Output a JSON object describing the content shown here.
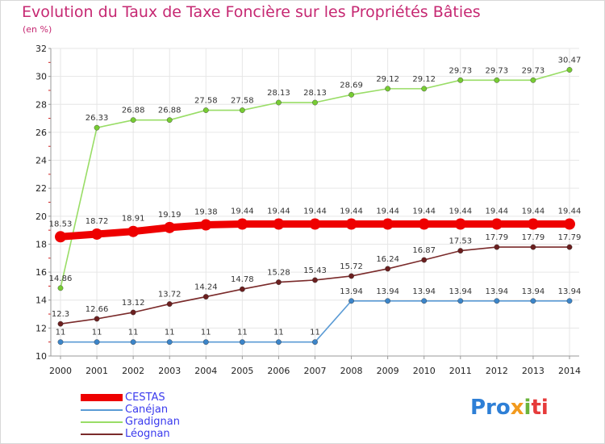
{
  "title": "Evolution du Taux de Taxe Foncière sur les Propriétés Bâties",
  "unit": "(en %)",
  "logo": {
    "p1": "Pro",
    "p2": "x",
    "p3": "i",
    "p4": "ti"
  },
  "colors": {
    "axis": "#999999",
    "grid": "#e6e6e6",
    "minor_tick": "#d02020",
    "title": "#c62872"
  },
  "chart_data": {
    "type": "line",
    "title": "Evolution du Taux de Taxe Foncière sur les Propriétés Bâties",
    "ylabel": "(en %)",
    "xlabel": "",
    "ylim": [
      10,
      32
    ],
    "yticks": [
      "10",
      "12",
      "14",
      "16",
      "18",
      "20",
      "22",
      "24",
      "26",
      "28",
      "30",
      "32"
    ],
    "categories": [
      "2000",
      "2001",
      "2002",
      "2003",
      "2004",
      "2005",
      "2006",
      "2007",
      "2008",
      "2009",
      "2010",
      "2011",
      "2012",
      "2013",
      "2014"
    ],
    "series": [
      {
        "name": "Gradignan",
        "color": "#99dd66",
        "marker": "#77cc33",
        "thick": false,
        "values": [
          14.86,
          26.33,
          26.88,
          26.88,
          27.58,
          27.58,
          28.13,
          28.13,
          28.69,
          29.12,
          29.12,
          29.73,
          29.73,
          29.73,
          30.47
        ],
        "labels": [
          "14.86",
          "26.33",
          "26.88",
          "26.88",
          "27.58",
          "27.58",
          "28.13",
          "28.13",
          "28.69",
          "29.12",
          "29.12",
          "29.73",
          "29.73",
          "29.73",
          "30.47"
        ]
      },
      {
        "name": "Léognan",
        "color": "#7a2a2a",
        "marker": "#6b1f1f",
        "thick": false,
        "values": [
          12.3,
          12.66,
          13.12,
          13.72,
          14.24,
          14.78,
          15.28,
          15.43,
          15.72,
          16.24,
          16.87,
          17.53,
          17.79,
          17.79,
          17.79
        ],
        "labels": [
          "12.3",
          "12.66",
          "13.12",
          "13.72",
          "14.24",
          "14.78",
          "15.28",
          "15.43",
          "15.72",
          "16.24",
          "16.87",
          "17.53",
          "17.79",
          "17.79",
          "17.79"
        ]
      },
      {
        "name": "Canéjan",
        "color": "#5b9bd5",
        "marker": "#3c85c9",
        "thick": false,
        "values": [
          11,
          11,
          11,
          11,
          11,
          11,
          11,
          11,
          13.94,
          13.94,
          13.94,
          13.94,
          13.94,
          13.94,
          13.94
        ],
        "labels": [
          "11",
          "11",
          "11",
          "11",
          "11",
          "11",
          "11",
          "11",
          "13.94",
          "13.94",
          "13.94",
          "13.94",
          "13.94",
          "13.94",
          "13.94"
        ]
      },
      {
        "name": "CESTAS",
        "color": "#ee0000",
        "marker": "#ee0000",
        "thick": true,
        "values": [
          18.53,
          18.72,
          18.91,
          19.19,
          19.38,
          19.44,
          19.44,
          19.44,
          19.44,
          19.44,
          19.44,
          19.44,
          19.44,
          19.44,
          19.44
        ],
        "labels": [
          "18.53",
          "18.72",
          "18.91",
          "19.19",
          "19.38",
          "19.44",
          "19.44",
          "19.44",
          "19.44",
          "19.44",
          "19.44",
          "19.44",
          "19.44",
          "19.44",
          "19.44"
        ]
      }
    ],
    "legend": [
      {
        "name": "CESTAS",
        "color": "#ee0000",
        "text_color": "#3a3aee",
        "thick": true
      },
      {
        "name": "Canéjan",
        "color": "#5b9bd5",
        "text_color": "#3a3aee",
        "thick": false
      },
      {
        "name": "Gradignan",
        "color": "#99dd66",
        "text_color": "#3a3aee",
        "thick": false
      },
      {
        "name": "Léognan",
        "color": "#7a2a2a",
        "text_color": "#3a3aee",
        "thick": false
      }
    ]
  }
}
